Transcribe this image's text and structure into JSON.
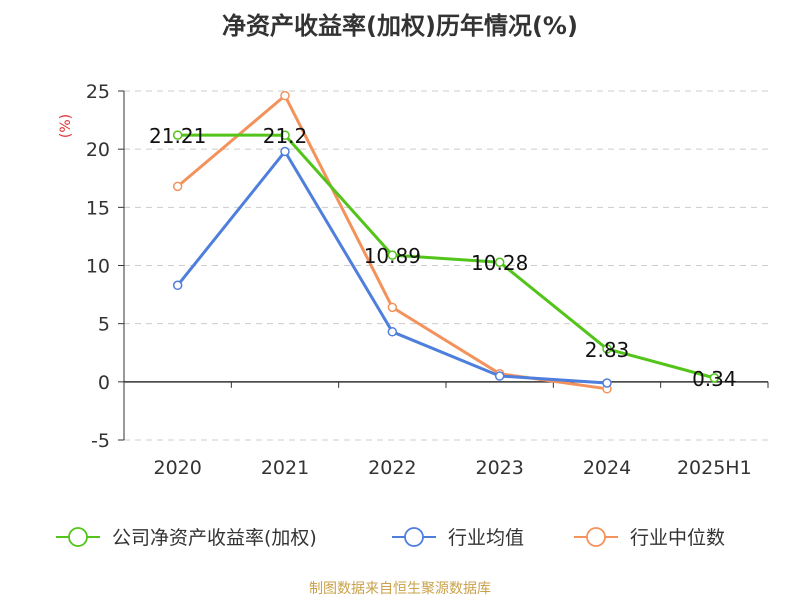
{
  "chart_data": {
    "type": "line",
    "title": "净资产收益率(加权)历年情况(%)",
    "ylabel": "(%)",
    "categories": [
      "2020",
      "2021",
      "2022",
      "2023",
      "2024",
      "2025H1"
    ],
    "y_ticks": [
      "25",
      "20",
      "15",
      "10",
      "5",
      "0",
      "-5"
    ],
    "ylim": [
      -5,
      25
    ],
    "grid": true,
    "legend_position": "bottom",
    "series": [
      {
        "name": "公司净资产收益率(加权)",
        "color": "#52c41a",
        "values": [
          21.21,
          21.2,
          10.89,
          10.28,
          2.83,
          0.34
        ],
        "labels": [
          "21.21",
          "21.2",
          "10.89",
          "10.28",
          "2.83",
          "0.34"
        ]
      },
      {
        "name": "行业均值",
        "color": "#4f7fdc",
        "values": [
          8.3,
          19.8,
          4.3,
          0.5,
          -0.1,
          null
        ]
      },
      {
        "name": "行业中位数",
        "color": "#f4925c",
        "values": [
          16.8,
          24.6,
          6.4,
          0.7,
          -0.6,
          null
        ]
      }
    ]
  },
  "footer": "制图数据来自恒生聚源数据库",
  "colors": {
    "footer": "#c9a24a",
    "ylabel": "#e03131",
    "axis": "#333333",
    "grid": "#cccccc"
  }
}
